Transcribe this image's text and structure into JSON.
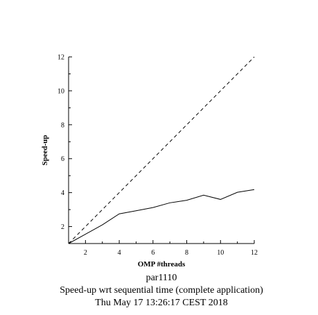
{
  "chart_data": {
    "type": "line",
    "xlabel": "OMP #threads",
    "ylabel": "Speed-up",
    "xlim": [
      1,
      12
    ],
    "ylim": [
      1,
      12
    ],
    "xticks": [
      2,
      4,
      6,
      8,
      10,
      12
    ],
    "yticks": [
      2,
      4,
      6,
      8,
      10,
      12
    ],
    "grid": false,
    "series": [
      {
        "style": "dashed",
        "x": [
          1,
          12
        ],
        "y": [
          1,
          12
        ]
      },
      {
        "style": "solid",
        "x": [
          1,
          2,
          3,
          4,
          5,
          6,
          7,
          8,
          9,
          10,
          11,
          12
        ],
        "y": [
          1.0,
          1.55,
          2.1,
          2.75,
          2.93,
          3.12,
          3.4,
          3.55,
          3.85,
          3.6,
          4.02,
          4.18
        ]
      }
    ],
    "captions": [
      "par1110",
      "Speed-up wrt sequential time (complete application)",
      "Thu May 17 13:26:17 CEST 2018"
    ]
  }
}
